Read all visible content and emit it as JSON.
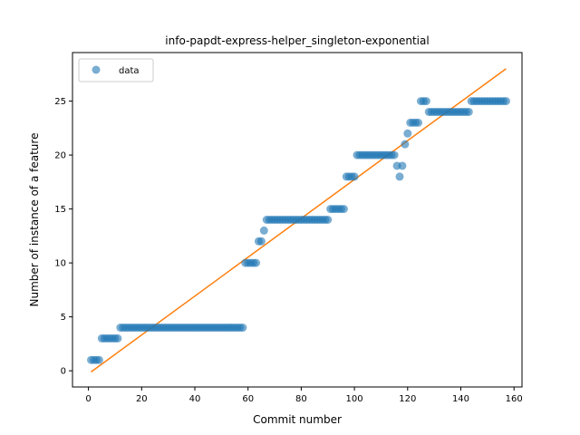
{
  "chart_data": {
    "type": "scatter",
    "title": "info-papdt-express-helper_singleton-exponential",
    "xlabel": "Commit number",
    "ylabel": "Number of instance of a feature",
    "xlim": [
      -6,
      163
    ],
    "ylim": [
      -1.5,
      29.5
    ],
    "xticks": [
      0,
      20,
      40,
      60,
      80,
      100,
      120,
      140,
      160
    ],
    "yticks": [
      0,
      5,
      10,
      15,
      20,
      25
    ],
    "legend": {
      "position": "top-left",
      "entries": [
        "data"
      ]
    },
    "grid": false,
    "colors": {
      "data": "#1f77b4",
      "fit": "#ff7f0e"
    },
    "series": [
      {
        "name": "data",
        "kind": "points",
        "points": [
          [
            1,
            1
          ],
          [
            2,
            1
          ],
          [
            3,
            1
          ],
          [
            4,
            1
          ],
          [
            5,
            3
          ],
          [
            6,
            3
          ],
          [
            7,
            3
          ],
          [
            8,
            3
          ],
          [
            9,
            3
          ],
          [
            10,
            3
          ],
          [
            11,
            3
          ],
          [
            12,
            4
          ],
          [
            13,
            4
          ],
          [
            14,
            4
          ],
          [
            15,
            4
          ],
          [
            16,
            4
          ],
          [
            17,
            4
          ],
          [
            18,
            4
          ],
          [
            19,
            4
          ],
          [
            20,
            4
          ],
          [
            21,
            4
          ],
          [
            22,
            4
          ],
          [
            23,
            4
          ],
          [
            24,
            4
          ],
          [
            25,
            4
          ],
          [
            26,
            4
          ],
          [
            27,
            4
          ],
          [
            28,
            4
          ],
          [
            29,
            4
          ],
          [
            30,
            4
          ],
          [
            31,
            4
          ],
          [
            32,
            4
          ],
          [
            33,
            4
          ],
          [
            34,
            4
          ],
          [
            35,
            4
          ],
          [
            36,
            4
          ],
          [
            37,
            4
          ],
          [
            38,
            4
          ],
          [
            39,
            4
          ],
          [
            40,
            4
          ],
          [
            41,
            4
          ],
          [
            42,
            4
          ],
          [
            43,
            4
          ],
          [
            44,
            4
          ],
          [
            45,
            4
          ],
          [
            46,
            4
          ],
          [
            47,
            4
          ],
          [
            48,
            4
          ],
          [
            49,
            4
          ],
          [
            50,
            4
          ],
          [
            51,
            4
          ],
          [
            52,
            4
          ],
          [
            53,
            4
          ],
          [
            54,
            4
          ],
          [
            55,
            4
          ],
          [
            56,
            4
          ],
          [
            57,
            4
          ],
          [
            58,
            4
          ],
          [
            59,
            10
          ],
          [
            60,
            10
          ],
          [
            61,
            10
          ],
          [
            62,
            10
          ],
          [
            63,
            10
          ],
          [
            64,
            12
          ],
          [
            65,
            12
          ],
          [
            66,
            13
          ],
          [
            67,
            14
          ],
          [
            68,
            14
          ],
          [
            69,
            14
          ],
          [
            70,
            14
          ],
          [
            71,
            14
          ],
          [
            72,
            14
          ],
          [
            73,
            14
          ],
          [
            74,
            14
          ],
          [
            75,
            14
          ],
          [
            76,
            14
          ],
          [
            77,
            14
          ],
          [
            78,
            14
          ],
          [
            79,
            14
          ],
          [
            80,
            14
          ],
          [
            81,
            14
          ],
          [
            82,
            14
          ],
          [
            83,
            14
          ],
          [
            84,
            14
          ],
          [
            85,
            14
          ],
          [
            86,
            14
          ],
          [
            87,
            14
          ],
          [
            88,
            14
          ],
          [
            89,
            14
          ],
          [
            90,
            14
          ],
          [
            91,
            15
          ],
          [
            92,
            15
          ],
          [
            93,
            15
          ],
          [
            94,
            15
          ],
          [
            95,
            15
          ],
          [
            96,
            15
          ],
          [
            97,
            18
          ],
          [
            98,
            18
          ],
          [
            99,
            18
          ],
          [
            100,
            18
          ],
          [
            101,
            20
          ],
          [
            102,
            20
          ],
          [
            103,
            20
          ],
          [
            104,
            20
          ],
          [
            105,
            20
          ],
          [
            106,
            20
          ],
          [
            107,
            20
          ],
          [
            108,
            20
          ],
          [
            109,
            20
          ],
          [
            110,
            20
          ],
          [
            111,
            20
          ],
          [
            112,
            20
          ],
          [
            113,
            20
          ],
          [
            114,
            20
          ],
          [
            115,
            20
          ],
          [
            116,
            19
          ],
          [
            117,
            18
          ],
          [
            118,
            19
          ],
          [
            119,
            21
          ],
          [
            120,
            22
          ],
          [
            121,
            23
          ],
          [
            122,
            23
          ],
          [
            123,
            23
          ],
          [
            124,
            23
          ],
          [
            125,
            25
          ],
          [
            126,
            25
          ],
          [
            127,
            25
          ],
          [
            128,
            24
          ],
          [
            129,
            24
          ],
          [
            130,
            24
          ],
          [
            131,
            24
          ],
          [
            132,
            24
          ],
          [
            133,
            24
          ],
          [
            134,
            24
          ],
          [
            135,
            24
          ],
          [
            136,
            24
          ],
          [
            137,
            24
          ],
          [
            138,
            24
          ],
          [
            139,
            24
          ],
          [
            140,
            24
          ],
          [
            141,
            24
          ],
          [
            142,
            24
          ],
          [
            143,
            24
          ],
          [
            144,
            25
          ],
          [
            145,
            25
          ],
          [
            146,
            25
          ],
          [
            147,
            25
          ],
          [
            148,
            25
          ],
          [
            149,
            25
          ],
          [
            150,
            25
          ],
          [
            151,
            25
          ],
          [
            152,
            25
          ],
          [
            153,
            25
          ],
          [
            154,
            25
          ],
          [
            155,
            25
          ],
          [
            156,
            25
          ],
          [
            157,
            25
          ]
        ]
      },
      {
        "kind": "line",
        "points": [
          [
            1,
            -0.1
          ],
          [
            157,
            28
          ]
        ]
      }
    ]
  }
}
